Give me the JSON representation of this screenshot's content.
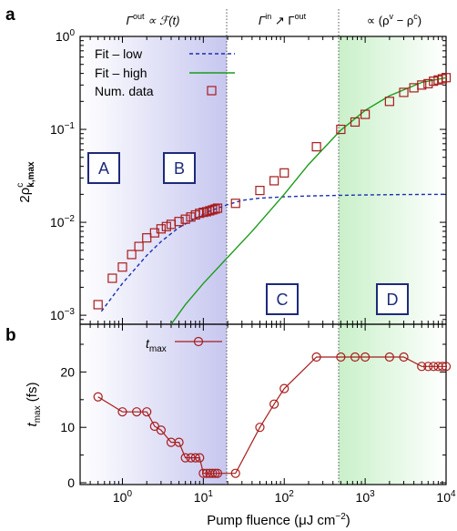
{
  "figure": {
    "panels": [
      "a",
      "b"
    ],
    "xlabel_main": "Pump fluence (μJ cm",
    "xlabel_sup": "−2",
    "xlabel_close": ")",
    "region_headers": {
      "r1_a": "Γ",
      "r1_sup": "out",
      "r1_b": " ∝ ℱ(t)",
      "r2_a": "Γ",
      "r2_sup1": "in",
      "r2_b": " ↗ Γ",
      "r2_sup2": "out",
      "r3_a": "∝ (ρ",
      "r3_sup1": "v",
      "r3_b": " − ρ",
      "r3_sup2": "c",
      "r3_c": ")"
    },
    "boxes": [
      "A",
      "B",
      "C",
      "D"
    ],
    "boxes_colors": {
      "edge": "#1d2a7a",
      "text": "#1d2a7a"
    },
    "colors": {
      "fit_low": "#1a2fb0",
      "fit_high": "#1a9c1a",
      "data": "#a81c1c",
      "shade_blue": "#c7c7f0",
      "shade_green": "#c9f0c9",
      "divider": "#555555"
    }
  },
  "chart_data": [
    {
      "type": "line",
      "panel": "a",
      "xscale": "log",
      "yscale": "log",
      "xlim": [
        0.3,
        10000
      ],
      "ylim": [
        0.0008,
        1
      ],
      "xticks": [
        1,
        10,
        100,
        1000,
        10000
      ],
      "xtick_labels": [
        {
          "base": "10",
          "exp": "0"
        },
        {
          "base": "10",
          "exp": "1"
        },
        {
          "base": "10",
          "exp": "2"
        },
        {
          "base": "10",
          "exp": "3"
        },
        {
          "base": "10",
          "exp": "4"
        }
      ],
      "yticks": [
        0.001,
        0.01,
        0.1,
        1
      ],
      "ytick_labels": [
        {
          "base": "10",
          "exp": "−3"
        },
        {
          "base": "10",
          "exp": "−2"
        },
        {
          "base": "10",
          "exp": "−1"
        },
        {
          "base": "10",
          "exp": "0"
        }
      ],
      "ylabel": {
        "main": "2ρ",
        "sup": "c",
        "sub": "k,max"
      },
      "region_dividers": [
        20,
        500
      ],
      "legend": {
        "placement": "top-left",
        "entries": [
          "Fit – low",
          "Fit – high",
          "Num. data"
        ]
      },
      "series": [
        {
          "name": "Fit – low",
          "style": "dashed",
          "x": [
            0.55,
            0.8,
            1,
            1.5,
            2,
            3,
            5,
            8,
            12,
            20,
            30,
            50,
            100,
            200,
            500,
            1000,
            3000,
            10000
          ],
          "y": [
            0.0011,
            0.0017,
            0.0022,
            0.0033,
            0.0044,
            0.0062,
            0.0088,
            0.011,
            0.0132,
            0.0155,
            0.0172,
            0.0182,
            0.0188,
            0.0192,
            0.0195,
            0.0197,
            0.0199,
            0.02
          ]
        },
        {
          "name": "Fit – high",
          "style": "solid",
          "x": [
            4,
            6,
            10,
            20,
            40,
            70,
            100,
            200,
            500,
            1000,
            2000,
            5000,
            10000
          ],
          "y": [
            0.0008,
            0.0013,
            0.0022,
            0.0042,
            0.008,
            0.014,
            0.02,
            0.042,
            0.098,
            0.16,
            0.23,
            0.32,
            0.36
          ]
        },
        {
          "name": "Num. data",
          "style": "markers",
          "x": [
            0.5,
            0.75,
            1,
            1.3,
            1.6,
            2,
            2.5,
            3,
            3.5,
            4,
            5,
            6,
            7,
            8,
            9,
            10,
            11,
            12,
            13,
            14,
            15,
            25,
            50,
            75,
            100,
            250,
            500,
            750,
            1000,
            2000,
            3000,
            4000,
            5000,
            6000,
            7000,
            8000,
            9000,
            10000
          ],
          "y": [
            0.0013,
            0.0025,
            0.0033,
            0.0045,
            0.0055,
            0.0068,
            0.0077,
            0.0085,
            0.009,
            0.0095,
            0.0102,
            0.0108,
            0.0114,
            0.012,
            0.0125,
            0.0128,
            0.013,
            0.0133,
            0.0136,
            0.0139,
            0.0142,
            0.016,
            0.022,
            0.028,
            0.034,
            0.065,
            0.1,
            0.12,
            0.145,
            0.2,
            0.25,
            0.28,
            0.3,
            0.31,
            0.33,
            0.34,
            0.35,
            0.36
          ]
        }
      ]
    },
    {
      "type": "line",
      "panel": "b",
      "xscale": "log",
      "yscale": "linear",
      "xlim": [
        0.3,
        10000
      ],
      "ylim": [
        0,
        25
      ],
      "yticks": [
        0,
        10,
        20
      ],
      "ylabel": {
        "main": "t",
        "sub": "max",
        "unit": " (fs)"
      },
      "series": [
        {
          "name": "t_max",
          "label_main": "t",
          "label_sub": "max",
          "style": "line-markers",
          "x": [
            0.5,
            1,
            1.5,
            2,
            2.5,
            3,
            4,
            5,
            6,
            7,
            8,
            9,
            10,
            11,
            12,
            13,
            14,
            15,
            25,
            50,
            75,
            100,
            250,
            500,
            750,
            1000,
            2000,
            3000,
            5000,
            6000,
            7000,
            8000,
            9000,
            10000
          ],
          "y": [
            15.5,
            12.8,
            12.8,
            12.8,
            10.2,
            9.5,
            7.3,
            7.3,
            4.5,
            4.5,
            4.5,
            4.5,
            1.7,
            1.7,
            1.7,
            1.7,
            1.7,
            1.7,
            1.7,
            10,
            14.2,
            17,
            22.7,
            22.7,
            22.7,
            22.7,
            22.7,
            22.7,
            21,
            21,
            21,
            21,
            21,
            21
          ]
        }
      ]
    }
  ]
}
